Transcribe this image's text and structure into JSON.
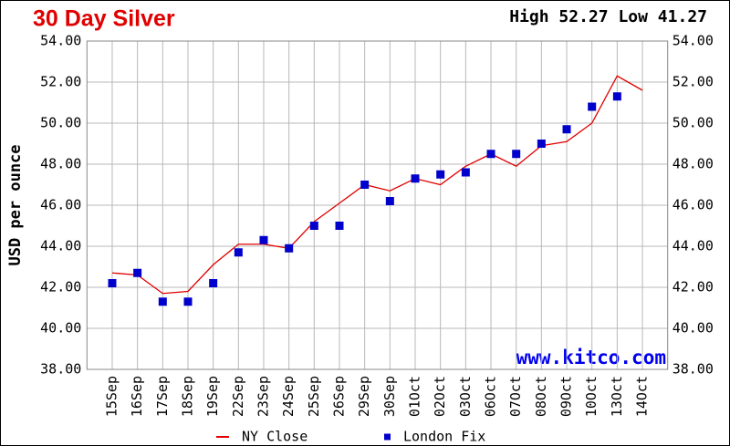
{
  "chart_data": {
    "type": "line",
    "title": "30 Day Silver",
    "subtitle": "High 52.27 Low 41.27",
    "y_label": "USD per ounce",
    "annotation": "www.kitco.com",
    "categories": [
      "15Sep",
      "16Sep",
      "17Sep",
      "18Sep",
      "19Sep",
      "22Sep",
      "23Sep",
      "24Sep",
      "25Sep",
      "26Sep",
      "29Sep",
      "30Sep",
      "01Oct",
      "02Oct",
      "03Oct",
      "06Oct",
      "07Oct",
      "08Oct",
      "09Oct",
      "10Oct",
      "13Oct",
      "14Oct"
    ],
    "series": [
      {
        "name": "NY Close",
        "color": "#e00000",
        "mark": "line",
        "values": [
          42.7,
          42.6,
          41.7,
          41.8,
          43.1,
          44.1,
          44.1,
          43.9,
          45.2,
          46.1,
          47.0,
          46.7,
          47.3,
          47.0,
          47.9,
          48.5,
          47.9,
          48.9,
          49.1,
          50.0,
          52.3,
          51.6
        ]
      },
      {
        "name": "London Fix",
        "color": "#0000cc",
        "mark": "square",
        "values": [
          42.2,
          42.7,
          41.3,
          41.3,
          42.2,
          43.7,
          44.3,
          43.9,
          45.0,
          45.0,
          47.0,
          46.2,
          47.3,
          47.5,
          47.6,
          48.5,
          48.5,
          49.0,
          49.7,
          50.8,
          51.3,
          null
        ]
      }
    ],
    "ylim": [
      38,
      54
    ],
    "yticks": [
      {
        "value": 38,
        "label": "38.00"
      },
      {
        "value": 40,
        "label": "40.00"
      },
      {
        "value": 42,
        "label": "42.00"
      },
      {
        "value": 44,
        "label": "44.00"
      },
      {
        "value": 46,
        "label": "46.00"
      },
      {
        "value": 48,
        "label": "48.00"
      },
      {
        "value": 50,
        "label": "50.00"
      },
      {
        "value": 52,
        "label": "52.00"
      },
      {
        "value": 54,
        "label": "54.00"
      }
    ],
    "grid": true
  }
}
